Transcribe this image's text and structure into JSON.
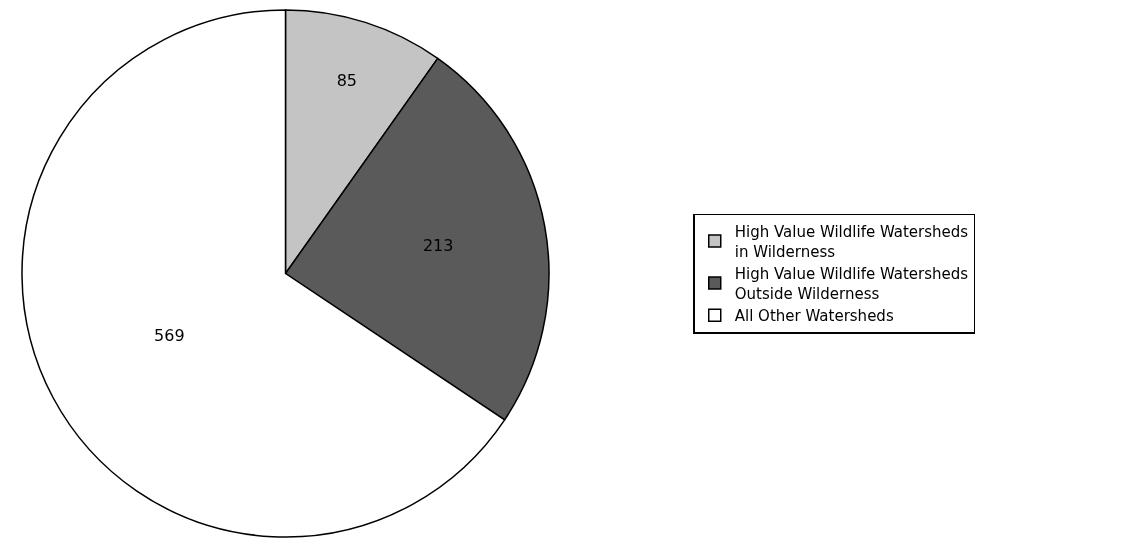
{
  "chart_data": {
    "type": "pie",
    "categories": [
      "High Value Wildlife Watersheds\nin Wilderness",
      "High Value Wildlife Watersheds\nOutside Wilderness",
      "All Other Watersheds"
    ],
    "values": [
      85,
      213,
      569
    ],
    "colors": [
      "#c4c4c4",
      "#5a5a5a",
      "#ffffff"
    ],
    "data_labels": true,
    "legend": "right"
  }
}
